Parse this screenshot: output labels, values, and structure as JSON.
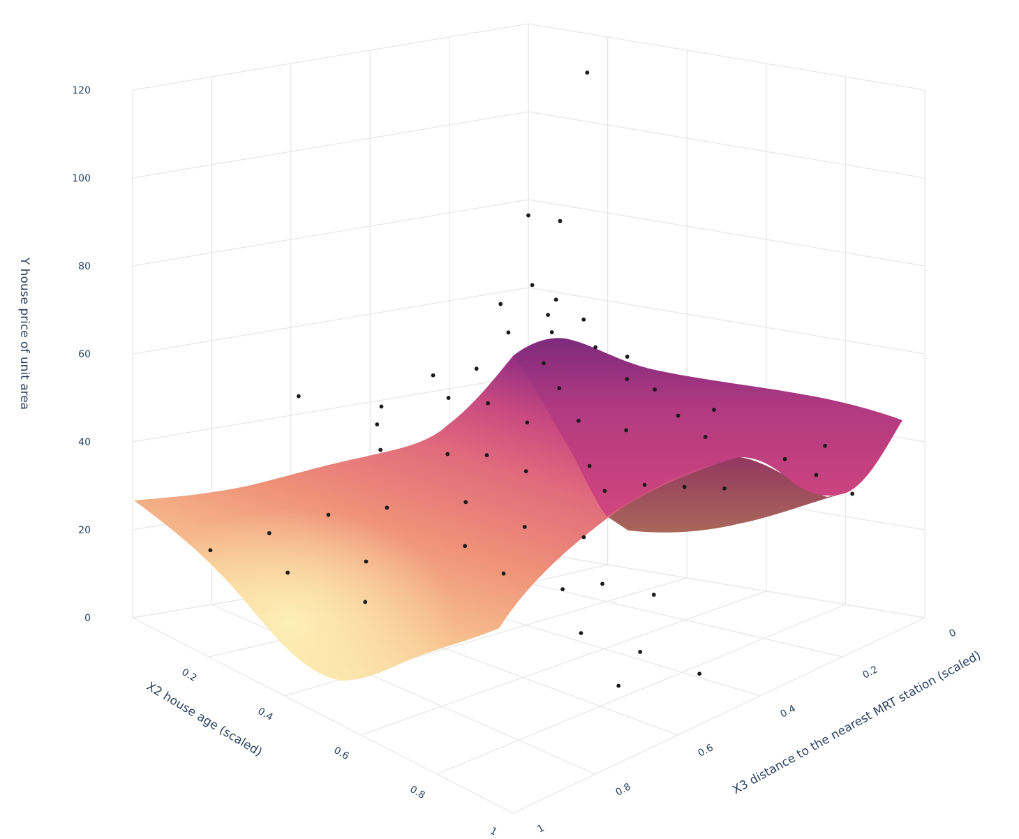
{
  "chart_data": {
    "type": "surface3d",
    "title": "",
    "x_axis": {
      "label": "X2 house age (scaled)",
      "range": [
        0,
        1
      ],
      "ticks": [
        "0.2",
        "0.4",
        "0.6",
        "0.8",
        "1"
      ]
    },
    "y_axis": {
      "label": "X3 distance to the nearest MRT station (scaled)",
      "range": [
        0,
        1
      ],
      "ticks": [
        "0",
        "0.2",
        "0.4",
        "0.6",
        "0.8",
        "1"
      ]
    },
    "z_axis": {
      "label": "Y house price of unit area",
      "range": [
        0,
        120
      ],
      "ticks": [
        "0",
        "20",
        "40",
        "60",
        "80",
        "100",
        "120"
      ]
    },
    "colorscale": [
      "#fcf0b4",
      "#f6b48a",
      "#ef8b76",
      "#e0607a",
      "#c33b7f",
      "#8b2d80"
    ],
    "marker_color": "#1a1a1a",
    "grid": true,
    "legend": "none",
    "surface_series": {
      "description_note": "",
      "x": [
        0.0,
        0.1,
        0.2,
        0.3,
        0.4,
        0.5,
        0.6,
        0.7,
        0.8,
        0.9,
        1.0
      ],
      "y": [
        0.0,
        0.1,
        0.2,
        0.3,
        0.4,
        0.5,
        0.6,
        0.7,
        0.8,
        0.9,
        1.0
      ],
      "z": [
        [
          49,
          53,
          58,
          56,
          50,
          44,
          40,
          36,
          33,
          30,
          28
        ],
        [
          47,
          51,
          55,
          54,
          48,
          42,
          38,
          34,
          31,
          29,
          28
        ],
        [
          44,
          48,
          51,
          50,
          45,
          39,
          35,
          31,
          29,
          28,
          28
        ],
        [
          40,
          44,
          47,
          46,
          41,
          35,
          31,
          28,
          26,
          26,
          27
        ],
        [
          36,
          40,
          43,
          42,
          37,
          31,
          27,
          24,
          22,
          22,
          24
        ],
        [
          34,
          37,
          40,
          39,
          34,
          28,
          23,
          19,
          16,
          16,
          19
        ],
        [
          35,
          38,
          41,
          39,
          33,
          26,
          20,
          14,
          10,
          10,
          14
        ],
        [
          38,
          40,
          42,
          40,
          33,
          25,
          17,
          10,
          6,
          6,
          10
        ],
        [
          33,
          37,
          40,
          38,
          31,
          23,
          15,
          8,
          3,
          3,
          7
        ],
        [
          25,
          32,
          37,
          36,
          30,
          22,
          14,
          7,
          2,
          2,
          5
        ],
        [
          20,
          30,
          36,
          35,
          29,
          21,
          13,
          6,
          1,
          1,
          4
        ]
      ]
    },
    "scatter_points": [
      {
        "x": 0.08,
        "y": 0.07,
        "z": 63
      },
      {
        "x": 0.12,
        "y": 0.05,
        "z": 60
      },
      {
        "x": 0.15,
        "y": 0.1,
        "z": 58
      },
      {
        "x": 0.2,
        "y": 0.06,
        "z": 57
      },
      {
        "x": 0.05,
        "y": 0.12,
        "z": 59
      },
      {
        "x": 0.1,
        "y": 0.15,
        "z": 54
      },
      {
        "x": 0.18,
        "y": 0.12,
        "z": 55
      },
      {
        "x": 0.25,
        "y": 0.08,
        "z": 52
      },
      {
        "x": 0.3,
        "y": 0.05,
        "z": 50
      },
      {
        "x": 0.22,
        "y": 0.18,
        "z": 50
      },
      {
        "x": 0.35,
        "y": 0.1,
        "z": 47
      },
      {
        "x": 0.28,
        "y": 0.2,
        "z": 46
      },
      {
        "x": 0.4,
        "y": 0.08,
        "z": 45
      },
      {
        "x": 0.12,
        "y": 0.25,
        "z": 48
      },
      {
        "x": 0.06,
        "y": 0.3,
        "z": 46
      },
      {
        "x": 0.15,
        "y": 0.35,
        "z": 44
      },
      {
        "x": 0.2,
        "y": 0.3,
        "z": 43
      },
      {
        "x": 0.3,
        "y": 0.3,
        "z": 41
      },
      {
        "x": 0.38,
        "y": 0.25,
        "z": 42
      },
      {
        "x": 0.45,
        "y": 0.2,
        "z": 40
      },
      {
        "x": 0.5,
        "y": 0.12,
        "z": 42
      },
      {
        "x": 0.55,
        "y": 0.08,
        "z": 43
      },
      {
        "x": 0.6,
        "y": 0.15,
        "z": 40
      },
      {
        "x": 0.48,
        "y": 0.32,
        "z": 36
      },
      {
        "x": 0.4,
        "y": 0.4,
        "z": 35
      },
      {
        "x": 0.32,
        "y": 0.42,
        "z": 37
      },
      {
        "x": 0.25,
        "y": 0.45,
        "z": 36
      },
      {
        "x": 0.55,
        "y": 0.35,
        "z": 33
      },
      {
        "x": 0.6,
        "y": 0.3,
        "z": 34
      },
      {
        "x": 0.65,
        "y": 0.25,
        "z": 33
      },
      {
        "x": 0.7,
        "y": 0.2,
        "z": 32
      },
      {
        "x": 0.75,
        "y": 0.1,
        "z": 36
      },
      {
        "x": 0.8,
        "y": 0.05,
        "z": 38
      },
      {
        "x": 0.85,
        "y": 0.12,
        "z": 35
      },
      {
        "x": 0.9,
        "y": 0.08,
        "z": 30
      },
      {
        "x": 0.05,
        "y": 0.05,
        "z": 78
      },
      {
        "x": 0.1,
        "y": 0.02,
        "z": 77
      },
      {
        "x": 0.02,
        "y": 0.6,
        "z": 45
      },
      {
        "x": 0.4,
        "y": 0.55,
        "z": 32
      },
      {
        "x": 0.5,
        "y": 0.5,
        "z": 28
      },
      {
        "x": 0.6,
        "y": 0.45,
        "z": 27
      },
      {
        "x": 0.45,
        "y": 0.6,
        "z": 25
      },
      {
        "x": 0.55,
        "y": 0.6,
        "z": 22
      },
      {
        "x": 0.65,
        "y": 0.55,
        "z": 20
      },
      {
        "x": 0.7,
        "y": 0.5,
        "z": 21
      },
      {
        "x": 0.78,
        "y": 0.45,
        "z": 19
      },
      {
        "x": 0.75,
        "y": 0.6,
        "z": 15
      },
      {
        "x": 0.85,
        "y": 0.55,
        "z": 12
      },
      {
        "x": 0.9,
        "y": 0.65,
        "z": 10
      },
      {
        "x": 0.95,
        "y": 0.5,
        "z": 8
      },
      {
        "x": 0.3,
        "y": 0.65,
        "z": 30
      },
      {
        "x": 0.2,
        "y": 0.7,
        "z": 26
      },
      {
        "x": 0.15,
        "y": 0.8,
        "z": 22
      },
      {
        "x": 0.1,
        "y": 0.9,
        "z": 18
      },
      {
        "x": 0.35,
        "y": 0.75,
        "z": 22
      },
      {
        "x": 0.25,
        "y": 0.85,
        "z": 18
      },
      {
        "x": 0.4,
        "y": 0.8,
        "z": 16
      },
      {
        "x": 0.12,
        "y": 0.5,
        "z": 40
      },
      {
        "x": 0.18,
        "y": 0.55,
        "z": 37
      },
      {
        "x": 0.08,
        "y": 0.45,
        "z": 42
      },
      {
        "x": 0.3,
        "y": 0.15,
        "z": 117
      }
    ]
  }
}
